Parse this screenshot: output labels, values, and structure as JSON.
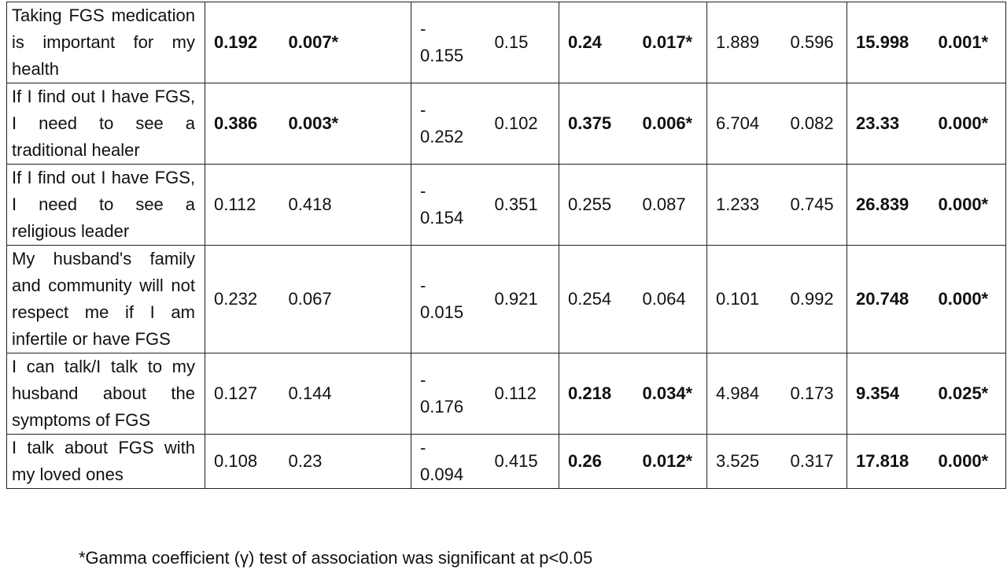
{
  "table": {
    "rows": [
      {
        "label": "Taking FGS medication is important for my health",
        "cells": [
          {
            "text": "0.192",
            "bold": true
          },
          {
            "text": "0.007*",
            "bold": true
          },
          {
            "text": "-\n0.155",
            "bold": false
          },
          {
            "text": "0.15",
            "bold": false
          },
          {
            "text": "0.24",
            "bold": true
          },
          {
            "text": "0.017*",
            "bold": true
          },
          {
            "text": "1.889",
            "bold": false
          },
          {
            "text": "0.596",
            "bold": false
          },
          {
            "text": "15.998",
            "bold": true
          },
          {
            "text": "0.001*",
            "bold": true
          }
        ]
      },
      {
        "label": "If I find out I have FGS, I need to see a traditional healer",
        "cells": [
          {
            "text": "0.386",
            "bold": true
          },
          {
            "text": "0.003*",
            "bold": true
          },
          {
            "text": "-\n0.252",
            "bold": false
          },
          {
            "text": "0.102",
            "bold": false
          },
          {
            "text": "0.375",
            "bold": true
          },
          {
            "text": "0.006*",
            "bold": true
          },
          {
            "text": "6.704",
            "bold": false
          },
          {
            "text": "0.082",
            "bold": false
          },
          {
            "text": "23.33",
            "bold": true
          },
          {
            "text": "0.000*",
            "bold": true
          }
        ]
      },
      {
        "label": "If I find out I have FGS, I need to see a religious leader",
        "cells": [
          {
            "text": "0.112",
            "bold": false
          },
          {
            "text": "0.418",
            "bold": false
          },
          {
            "text": "-\n0.154",
            "bold": false
          },
          {
            "text": "0.351",
            "bold": false
          },
          {
            "text": "0.255",
            "bold": false
          },
          {
            "text": "0.087",
            "bold": false
          },
          {
            "text": "1.233",
            "bold": false
          },
          {
            "text": "0.745",
            "bold": false
          },
          {
            "text": "26.839",
            "bold": true
          },
          {
            "text": "0.000*",
            "bold": true
          }
        ]
      },
      {
        "label": "My husband's family and community will not respect me if I am infertile or have FGS",
        "cells": [
          {
            "text": "0.232",
            "bold": false
          },
          {
            "text": "0.067",
            "bold": false
          },
          {
            "text": "-\n0.015",
            "bold": false
          },
          {
            "text": "0.921",
            "bold": false
          },
          {
            "text": "0.254",
            "bold": false
          },
          {
            "text": "0.064",
            "bold": false
          },
          {
            "text": "0.101",
            "bold": false
          },
          {
            "text": "0.992",
            "bold": false
          },
          {
            "text": "20.748",
            "bold": true
          },
          {
            "text": "0.000*",
            "bold": true
          }
        ]
      },
      {
        "label": "I can talk/I talk to my husband about the symptoms of FGS",
        "cells": [
          {
            "text": "0.127",
            "bold": false
          },
          {
            "text": "0.144",
            "bold": false
          },
          {
            "text": "-\n0.176",
            "bold": false
          },
          {
            "text": "0.112",
            "bold": false
          },
          {
            "text": "0.218",
            "bold": true
          },
          {
            "text": "0.034*",
            "bold": true
          },
          {
            "text": "4.984",
            "bold": false
          },
          {
            "text": "0.173",
            "bold": false
          },
          {
            "text": "9.354",
            "bold": true
          },
          {
            "text": "0.025*",
            "bold": true
          }
        ]
      },
      {
        "label": "I talk about FGS with my loved ones",
        "cells": [
          {
            "text": "0.108",
            "bold": false
          },
          {
            "text": "0.23",
            "bold": false
          },
          {
            "text": "-\n0.094",
            "bold": false
          },
          {
            "text": "0.415",
            "bold": false
          },
          {
            "text": "0.26",
            "bold": true
          },
          {
            "text": "0.012*",
            "bold": true
          },
          {
            "text": "3.525",
            "bold": false
          },
          {
            "text": "0.317",
            "bold": false
          },
          {
            "text": "17.818",
            "bold": true
          },
          {
            "text": "0.000*",
            "bold": true
          }
        ]
      }
    ]
  },
  "footnote": "*Gamma coefficient (γ) test of association was significant at p<0.05"
}
